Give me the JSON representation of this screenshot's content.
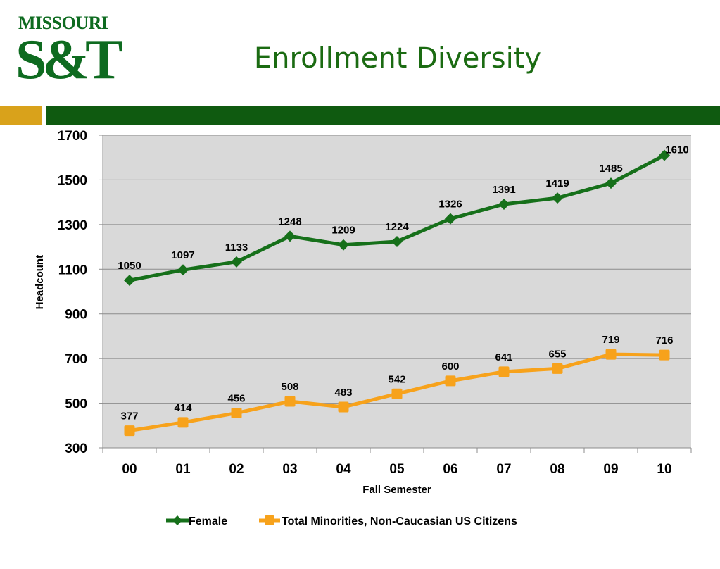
{
  "logo": {
    "top_text": "MISSOURI",
    "main_text": "S&T"
  },
  "title": "Enrollment Diversity",
  "colors": {
    "female": "#16701a",
    "minorities": "#f7a21b",
    "plot_bg": "#d9d9d9",
    "gold_bar": "#d9a21b",
    "green_bar": "#0f5a10"
  },
  "chart_data": {
    "type": "line",
    "categories": [
      "00",
      "01",
      "02",
      "03",
      "04",
      "05",
      "06",
      "07",
      "08",
      "09",
      "10"
    ],
    "series": [
      {
        "name": "Female",
        "marker": "diamond",
        "values": [
          1050,
          1097,
          1133,
          1248,
          1209,
          1224,
          1326,
          1391,
          1419,
          1485,
          1610
        ]
      },
      {
        "name": "Total Minorities, Non-Caucasian US Citizens",
        "marker": "square",
        "values": [
          377,
          414,
          456,
          508,
          483,
          542,
          600,
          641,
          655,
          719,
          716
        ]
      }
    ],
    "xlabel": "Fall Semester",
    "ylabel": "Headcount",
    "ylim": [
      300,
      1700
    ],
    "yticks": [
      300,
      500,
      700,
      900,
      1100,
      1300,
      1500,
      1700
    ],
    "grid": true,
    "legend": "bottom"
  }
}
